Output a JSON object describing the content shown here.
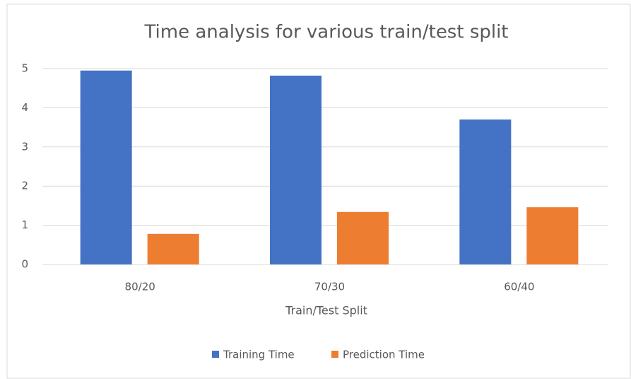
{
  "chart_data": {
    "type": "bar",
    "title": "Time analysis for various train/test split",
    "x_label": "Train/Test Split",
    "categories": [
      "80/20",
      "70/30",
      "60/40"
    ],
    "series": [
      {
        "name": "Training Time",
        "color": "#4472c4",
        "values": [
          4.95,
          4.82,
          3.7
        ]
      },
      {
        "name": "Prediction Time",
        "color": "#ed7d31",
        "values": [
          0.78,
          1.34,
          1.46
        ]
      }
    ],
    "ylim": [
      0,
      5
    ],
    "yticks": [
      0,
      1,
      2,
      3,
      4,
      5
    ],
    "grid": true,
    "legend": "bottom"
  }
}
